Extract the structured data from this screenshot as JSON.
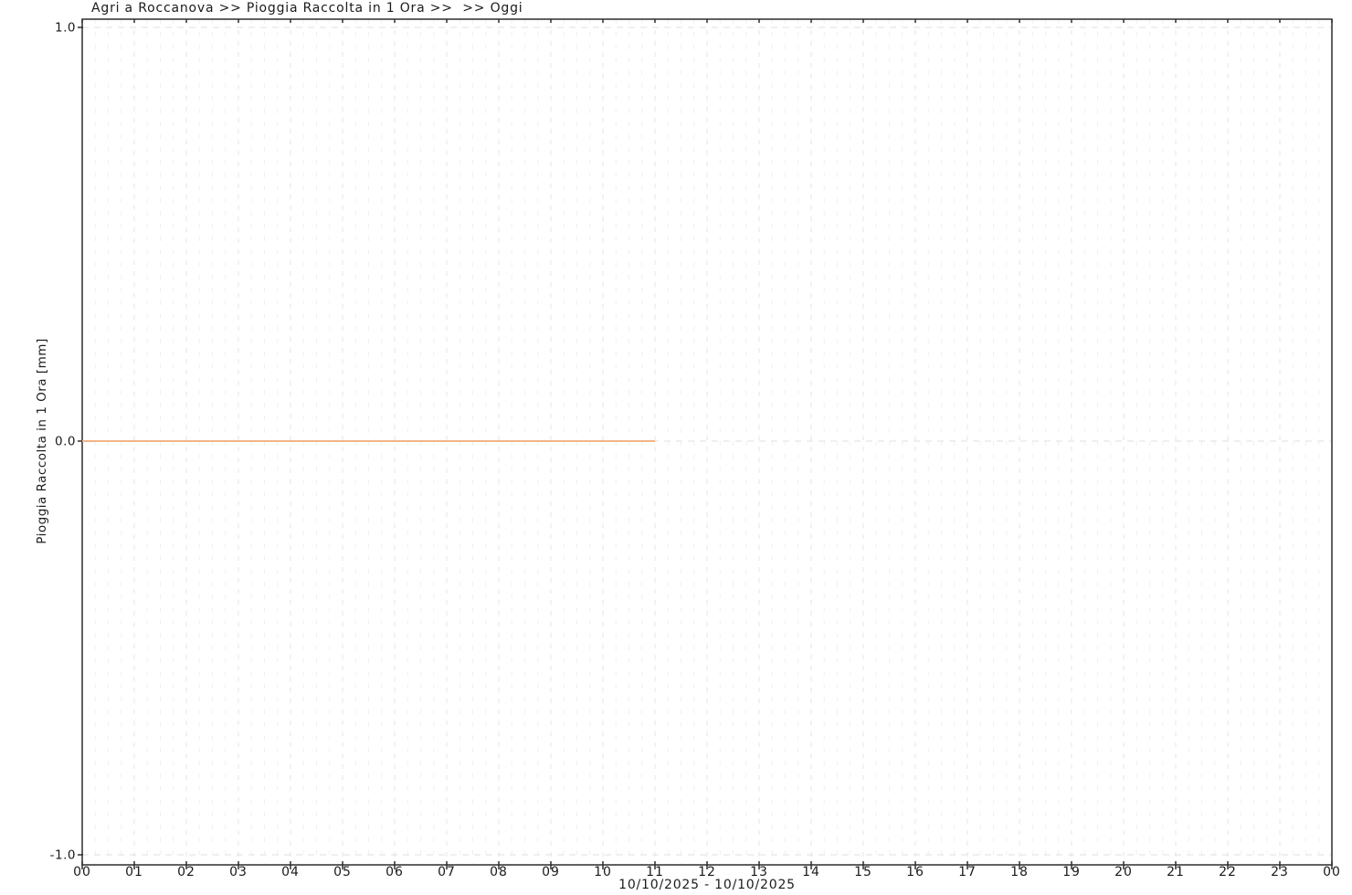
{
  "title": "Agri a Roccanova >> Pioggia Raccolta in 1 Ora >>  >> Oggi",
  "y_axis": {
    "label": "Pioggia Raccolta in 1 Ora [mm]",
    "ticks": [
      "1.0",
      "0.0",
      "-1.0"
    ],
    "tick_values": [
      1.0,
      0.0,
      -1.0
    ]
  },
  "x_axis": {
    "ticks": [
      "00",
      "01",
      "02",
      "03",
      "04",
      "05",
      "06",
      "07",
      "08",
      "09",
      "10",
      "11",
      "12",
      "13",
      "14",
      "15",
      "16",
      "17",
      "18",
      "19",
      "20",
      "21",
      "22",
      "23",
      "00"
    ],
    "date_range": "10/10/2025 - 10/10/2025"
  },
  "chart_data": {
    "type": "line",
    "title": "Agri a Roccanova >> Pioggia Raccolta in 1 Ora >>  >> Oggi",
    "xlabel": "10/10/2025 - 10/10/2025",
    "ylabel": "Pioggia Raccolta in 1 Ora [mm]",
    "ylim": [
      -1.0,
      1.0
    ],
    "xlim_hours": [
      0,
      24
    ],
    "y_tick_values": [
      1.0,
      0.0,
      -1.0
    ],
    "x_tick_hours": [
      0,
      1,
      2,
      3,
      4,
      5,
      6,
      7,
      8,
      9,
      10,
      11,
      12,
      13,
      14,
      15,
      16,
      17,
      18,
      19,
      20,
      21,
      22,
      23,
      24
    ],
    "grid": true,
    "minor_grid_interval_hours": 0.25,
    "legend_position": "none",
    "series": [
      {
        "name": "Pioggia Raccolta in 1 Ora [mm]",
        "color": "#f0b588",
        "x_hours": [
          0,
          11
        ],
        "values": [
          0.0,
          0.0
        ],
        "note": "constant 0.0 mm from 00:00 to 11:00, no data after 11:00"
      }
    ]
  },
  "colors": {
    "background": "#ffffff",
    "axis": "#2d2d2d",
    "grid_minor": "#f0f0f0",
    "grid_major": "#e4e4e4",
    "grid_horizontal": "#dfdfdf",
    "series_line": "#f0b588",
    "text": "#1b1b1b"
  }
}
